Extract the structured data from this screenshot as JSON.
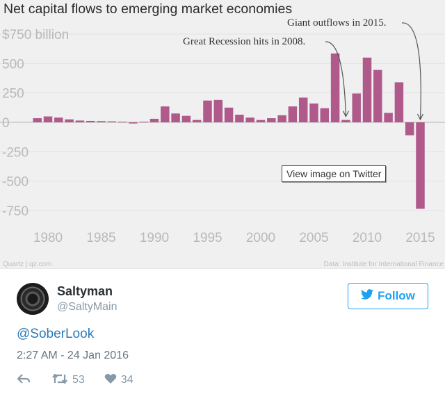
{
  "chart_data": {
    "type": "bar",
    "title": "Net capital flows to emerging market economies",
    "x": [
      1979,
      1980,
      1981,
      1982,
      1983,
      1984,
      1985,
      1986,
      1987,
      1988,
      1989,
      1990,
      1991,
      1992,
      1993,
      1994,
      1995,
      1996,
      1997,
      1998,
      1999,
      2000,
      2001,
      2002,
      2003,
      2004,
      2005,
      2006,
      2007,
      2008,
      2009,
      2010,
      2011,
      2012,
      2013,
      2014,
      2015
    ],
    "values": [
      35,
      50,
      40,
      25,
      15,
      12,
      10,
      8,
      5,
      -10,
      5,
      30,
      135,
      75,
      55,
      20,
      185,
      190,
      125,
      65,
      40,
      20,
      35,
      60,
      135,
      210,
      160,
      120,
      585,
      20,
      245,
      550,
      445,
      80,
      340,
      -110,
      -735
    ],
    "ylim": [
      -800,
      800
    ],
    "yticks": [
      -750,
      -500,
      -250,
      0,
      250,
      500,
      750
    ],
    "ytick_labels": [
      "-750",
      "-500",
      "-250",
      "0",
      "250",
      "500",
      "$750 billion"
    ],
    "xticks": [
      1980,
      1985,
      1990,
      1995,
      2000,
      2005,
      2010,
      2015
    ],
    "xtick_labels": [
      "1980",
      "1985",
      "1990",
      "1995",
      "2000",
      "2005",
      "2010",
      "2015"
    ],
    "xlabel": "",
    "ylabel": "",
    "bar_color": "#b05a8c",
    "annotations": [
      {
        "text": "Great Recession hits in 2008.",
        "x": 2008,
        "y": 20
      },
      {
        "text": "Giant outflows in 2015.",
        "x": 2015,
        "y": 0
      }
    ],
    "source_left": "Quartz | qz.com",
    "source_right": "Data: Institute for International Finance"
  },
  "tooltip": "View image on Twitter",
  "tweet": {
    "display_name": "Saltyman",
    "handle": "@SaltyMain",
    "follow_label": "Follow",
    "text": "@SoberLook",
    "timestamp": "2:27 AM - 24 Jan 2016",
    "retweets": "53",
    "likes": "34",
    "accent_color": "#1da1f2"
  }
}
